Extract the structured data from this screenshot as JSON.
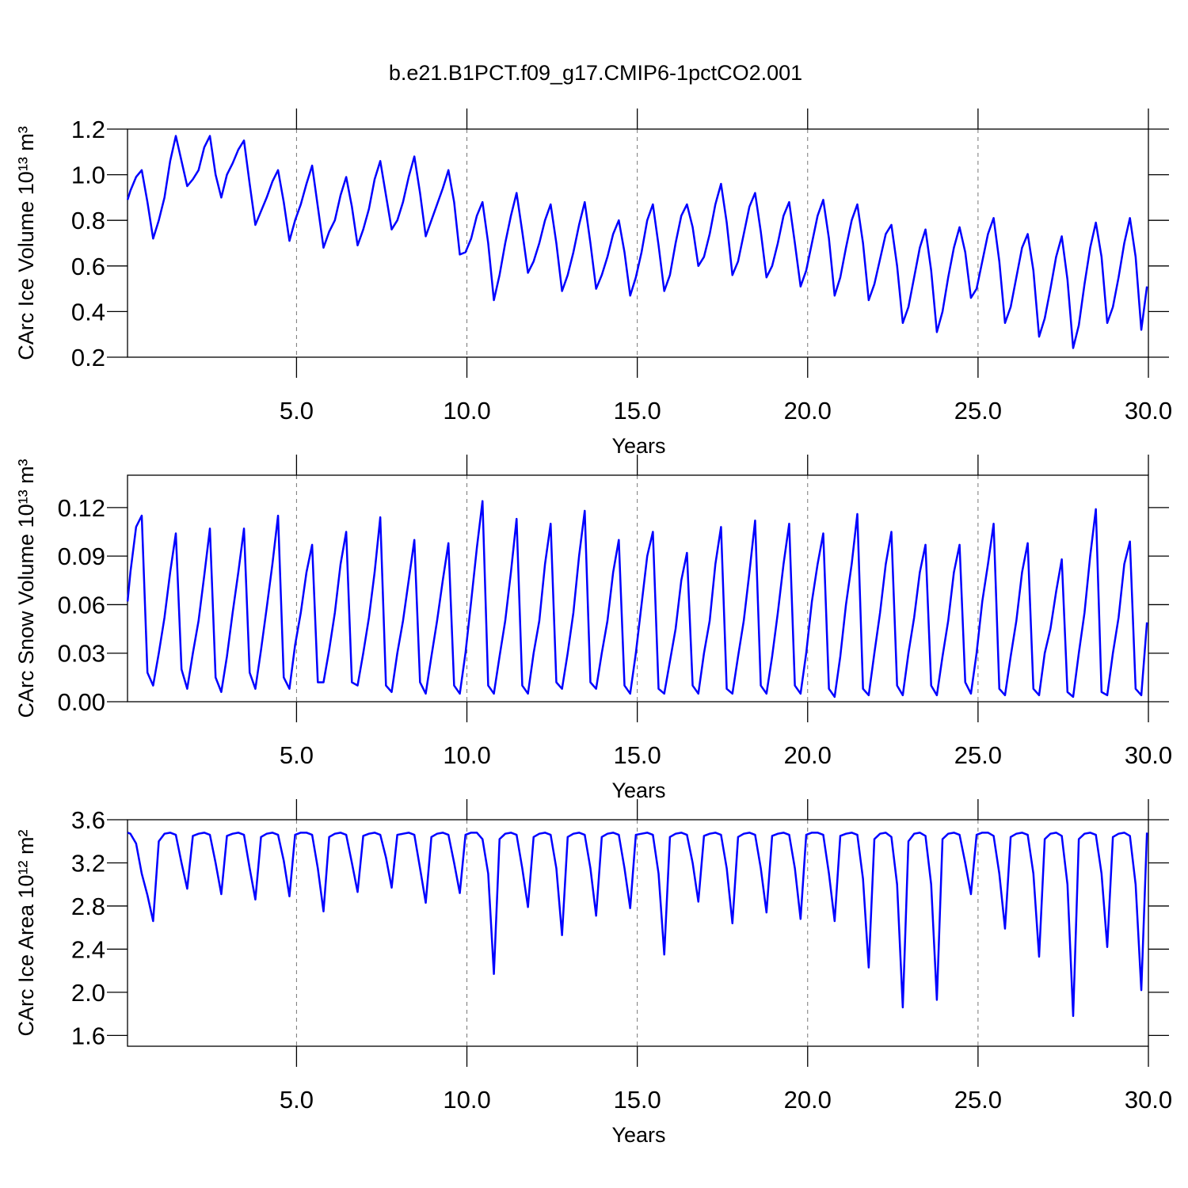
{
  "chart_data": [
    {
      "type": "line",
      "title": "b.e21.B1PCT.f09_g17.CMIP6-1pctCO2.001",
      "ylabel": "CArc Ice Volume 10¹³ m³",
      "xlabel": "Years",
      "color": "#0000ff",
      "xgrid": true,
      "xlim": [
        0.04,
        30
      ],
      "xticks": [
        {
          "value": 5,
          "label": "5.0"
        },
        {
          "value": 10,
          "label": "10.0"
        },
        {
          "value": 15,
          "label": "15.0"
        },
        {
          "value": 20,
          "label": "20.0"
        },
        {
          "value": 25,
          "label": "25.0"
        },
        {
          "value": 30,
          "label": "30.0"
        }
      ],
      "ylim": [
        0.2,
        1.2
      ],
      "yticks": [
        0.2,
        0.4,
        0.6,
        0.8,
        {
          "value": 1,
          "label": "1.0"
        },
        1.2
      ],
      "x": [
        0.042,
        0.125,
        0.292,
        0.458,
        0.625,
        0.792,
        0.958,
        1.125,
        1.292,
        1.458,
        1.625,
        1.792,
        1.958,
        2.125,
        2.292,
        2.458,
        2.625,
        2.792,
        2.958,
        3.125,
        3.292,
        3.458,
        3.625,
        3.792,
        3.958,
        4.125,
        4.292,
        4.458,
        4.625,
        4.792,
        4.958,
        5.125,
        5.292,
        5.458,
        5.625,
        5.792,
        5.958,
        6.125,
        6.292,
        6.458,
        6.625,
        6.792,
        6.958,
        7.125,
        7.292,
        7.458,
        7.625,
        7.792,
        7.958,
        8.125,
        8.292,
        8.458,
        8.625,
        8.792,
        8.958,
        9.125,
        9.292,
        9.458,
        9.625,
        9.792,
        9.958,
        10.125,
        10.292,
        10.458,
        10.625,
        10.792,
        10.958,
        11.125,
        11.292,
        11.458,
        11.625,
        11.792,
        11.958,
        12.125,
        12.292,
        12.458,
        12.625,
        12.792,
        12.958,
        13.125,
        13.292,
        13.458,
        13.625,
        13.792,
        13.958,
        14.125,
        14.292,
        14.458,
        14.625,
        14.792,
        14.958,
        15.125,
        15.292,
        15.458,
        15.625,
        15.792,
        15.958,
        16.125,
        16.292,
        16.458,
        16.625,
        16.792,
        16.958,
        17.125,
        17.292,
        17.458,
        17.625,
        17.792,
        17.958,
        18.125,
        18.292,
        18.458,
        18.625,
        18.792,
        18.958,
        19.125,
        19.292,
        19.458,
        19.625,
        19.792,
        19.958,
        20.125,
        20.292,
        20.458,
        20.625,
        20.792,
        20.958,
        21.125,
        21.292,
        21.458,
        21.625,
        21.792,
        21.958,
        22.125,
        22.292,
        22.458,
        22.625,
        22.792,
        22.958,
        23.125,
        23.292,
        23.458,
        23.625,
        23.792,
        23.958,
        24.125,
        24.292,
        24.458,
        24.625,
        24.792,
        24.958,
        25.125,
        25.292,
        25.458,
        25.625,
        25.792,
        25.958,
        26.125,
        26.292,
        26.458,
        26.625,
        26.792,
        26.958,
        27.125,
        27.292,
        27.458,
        27.625,
        27.792,
        27.958,
        28.125,
        28.292,
        28.458,
        28.625,
        28.792,
        28.958,
        29.125,
        29.292,
        29.458,
        29.625,
        29.792,
        29.958
      ],
      "values": [
        0.89,
        0.93,
        0.99,
        1.02,
        0.88,
        0.72,
        0.8,
        0.9,
        1.06,
        1.17,
        1.06,
        0.95,
        0.98,
        1.02,
        1.12,
        1.17,
        1.0,
        0.9,
        1.0,
        1.05,
        1.11,
        1.15,
        0.96,
        0.78,
        0.84,
        0.9,
        0.97,
        1.02,
        0.88,
        0.71,
        0.8,
        0.87,
        0.96,
        1.04,
        0.86,
        0.68,
        0.75,
        0.8,
        0.91,
        0.99,
        0.86,
        0.69,
        0.76,
        0.85,
        0.98,
        1.06,
        0.91,
        0.76,
        0.8,
        0.88,
        0.99,
        1.08,
        0.92,
        0.73,
        0.8,
        0.87,
        0.94,
        1.02,
        0.88,
        0.65,
        0.66,
        0.72,
        0.82,
        0.88,
        0.7,
        0.45,
        0.56,
        0.7,
        0.82,
        0.92,
        0.75,
        0.57,
        0.62,
        0.7,
        0.8,
        0.87,
        0.7,
        0.49,
        0.56,
        0.66,
        0.78,
        0.88,
        0.7,
        0.5,
        0.56,
        0.64,
        0.74,
        0.8,
        0.66,
        0.47,
        0.55,
        0.66,
        0.8,
        0.87,
        0.69,
        0.49,
        0.56,
        0.7,
        0.82,
        0.87,
        0.77,
        0.6,
        0.64,
        0.74,
        0.87,
        0.96,
        0.79,
        0.56,
        0.62,
        0.74,
        0.86,
        0.92,
        0.75,
        0.55,
        0.6,
        0.7,
        0.82,
        0.88,
        0.7,
        0.51,
        0.58,
        0.7,
        0.82,
        0.89,
        0.72,
        0.47,
        0.55,
        0.68,
        0.8,
        0.87,
        0.7,
        0.45,
        0.52,
        0.63,
        0.74,
        0.78,
        0.6,
        0.35,
        0.42,
        0.55,
        0.68,
        0.76,
        0.58,
        0.31,
        0.4,
        0.55,
        0.68,
        0.77,
        0.66,
        0.46,
        0.5,
        0.62,
        0.74,
        0.81,
        0.62,
        0.35,
        0.42,
        0.55,
        0.68,
        0.74,
        0.58,
        0.29,
        0.37,
        0.5,
        0.64,
        0.73,
        0.54,
        0.24,
        0.34,
        0.52,
        0.68,
        0.79,
        0.64,
        0.35,
        0.42,
        0.55,
        0.7,
        0.81,
        0.64,
        0.32,
        0.51
      ]
    },
    {
      "type": "line",
      "ylabel": "CArc Snow Volume 10¹³ m³",
      "xlabel": "Years",
      "color": "#0000ff",
      "xgrid": true,
      "xlim": [
        0.04,
        30
      ],
      "xticks": [
        {
          "value": 5,
          "label": "5.0"
        },
        {
          "value": 10,
          "label": "10.0"
        },
        {
          "value": 15,
          "label": "15.0"
        },
        {
          "value": 20,
          "label": "20.0"
        },
        {
          "value": 25,
          "label": "25.0"
        },
        {
          "value": 30,
          "label": "30.0"
        }
      ],
      "ylim": [
        0,
        0.14
      ],
      "yticks": [
        {
          "value": 0,
          "label": "0.00"
        },
        {
          "value": 0.03,
          "label": "0.03"
        },
        {
          "value": 0.06,
          "label": "0.06"
        },
        {
          "value": 0.09,
          "label": "0.09"
        },
        {
          "value": 0.12,
          "label": "0.12"
        }
      ],
      "x": [
        0.042,
        0.125,
        0.292,
        0.458,
        0.625,
        0.792,
        0.958,
        1.125,
        1.292,
        1.458,
        1.625,
        1.792,
        1.958,
        2.125,
        2.292,
        2.458,
        2.625,
        2.792,
        2.958,
        3.125,
        3.292,
        3.458,
        3.625,
        3.792,
        3.958,
        4.125,
        4.292,
        4.458,
        4.625,
        4.792,
        4.958,
        5.125,
        5.292,
        5.458,
        5.625,
        5.792,
        5.958,
        6.125,
        6.292,
        6.458,
        6.625,
        6.792,
        6.958,
        7.125,
        7.292,
        7.458,
        7.625,
        7.792,
        7.958,
        8.125,
        8.292,
        8.458,
        8.625,
        8.792,
        8.958,
        9.125,
        9.292,
        9.458,
        9.625,
        9.792,
        9.958,
        10.125,
        10.292,
        10.458,
        10.625,
        10.792,
        10.958,
        11.125,
        11.292,
        11.458,
        11.625,
        11.792,
        11.958,
        12.125,
        12.292,
        12.458,
        12.625,
        12.792,
        12.958,
        13.125,
        13.292,
        13.458,
        13.625,
        13.792,
        13.958,
        14.125,
        14.292,
        14.458,
        14.625,
        14.792,
        14.958,
        15.125,
        15.292,
        15.458,
        15.625,
        15.792,
        15.958,
        16.125,
        16.292,
        16.458,
        16.625,
        16.792,
        16.958,
        17.125,
        17.292,
        17.458,
        17.625,
        17.792,
        17.958,
        18.125,
        18.292,
        18.458,
        18.625,
        18.792,
        18.958,
        19.125,
        19.292,
        19.458,
        19.625,
        19.792,
        19.958,
        20.125,
        20.292,
        20.458,
        20.625,
        20.792,
        20.958,
        21.125,
        21.292,
        21.458,
        21.625,
        21.792,
        21.958,
        22.125,
        22.292,
        22.458,
        22.625,
        22.792,
        22.958,
        23.125,
        23.292,
        23.458,
        23.625,
        23.792,
        23.958,
        24.125,
        24.292,
        24.458,
        24.625,
        24.792,
        24.958,
        25.125,
        25.292,
        25.458,
        25.625,
        25.792,
        25.958,
        26.125,
        26.292,
        26.458,
        26.625,
        26.792,
        26.958,
        27.125,
        27.292,
        27.458,
        27.625,
        27.792,
        27.958,
        28.125,
        28.292,
        28.458,
        28.625,
        28.792,
        28.958,
        29.125,
        29.292,
        29.458,
        29.625,
        29.792,
        29.958
      ],
      "values": [
        0.062,
        0.08,
        0.108,
        0.115,
        0.018,
        0.01,
        0.03,
        0.052,
        0.08,
        0.104,
        0.02,
        0.008,
        0.03,
        0.05,
        0.078,
        0.107,
        0.015,
        0.006,
        0.028,
        0.055,
        0.08,
        0.107,
        0.018,
        0.008,
        0.032,
        0.058,
        0.085,
        0.115,
        0.015,
        0.008,
        0.035,
        0.055,
        0.08,
        0.097,
        0.012,
        0.012,
        0.032,
        0.055,
        0.085,
        0.105,
        0.012,
        0.01,
        0.03,
        0.052,
        0.08,
        0.114,
        0.01,
        0.006,
        0.03,
        0.05,
        0.075,
        0.1,
        0.012,
        0.005,
        0.028,
        0.05,
        0.075,
        0.098,
        0.01,
        0.005,
        0.03,
        0.062,
        0.095,
        0.124,
        0.01,
        0.005,
        0.028,
        0.05,
        0.08,
        0.113,
        0.01,
        0.005,
        0.03,
        0.05,
        0.085,
        0.11,
        0.012,
        0.008,
        0.03,
        0.055,
        0.09,
        0.118,
        0.012,
        0.008,
        0.03,
        0.05,
        0.08,
        0.1,
        0.01,
        0.005,
        0.03,
        0.06,
        0.09,
        0.105,
        0.008,
        0.005,
        0.025,
        0.045,
        0.075,
        0.092,
        0.01,
        0.005,
        0.03,
        0.05,
        0.085,
        0.108,
        0.008,
        0.005,
        0.028,
        0.05,
        0.08,
        0.112,
        0.01,
        0.005,
        0.028,
        0.055,
        0.085,
        0.11,
        0.01,
        0.005,
        0.03,
        0.062,
        0.085,
        0.104,
        0.008,
        0.003,
        0.028,
        0.06,
        0.085,
        0.116,
        0.008,
        0.004,
        0.03,
        0.055,
        0.085,
        0.105,
        0.01,
        0.004,
        0.03,
        0.052,
        0.08,
        0.097,
        0.01,
        0.004,
        0.028,
        0.05,
        0.08,
        0.097,
        0.012,
        0.005,
        0.03,
        0.062,
        0.085,
        0.11,
        0.008,
        0.004,
        0.028,
        0.05,
        0.08,
        0.098,
        0.008,
        0.004,
        0.03,
        0.045,
        0.068,
        0.088,
        0.006,
        0.003,
        0.03,
        0.055,
        0.09,
        0.119,
        0.006,
        0.004,
        0.03,
        0.052,
        0.085,
        0.099,
        0.008,
        0.004,
        0.049
      ]
    },
    {
      "type": "line",
      "ylabel": "CArc Ice Area 10¹² m²",
      "xlabel": "Years",
      "color": "#0000ff",
      "xgrid": true,
      "xlim": [
        0.04,
        30
      ],
      "xticks": [
        {
          "value": 5,
          "label": "5.0"
        },
        {
          "value": 10,
          "label": "10.0"
        },
        {
          "value": 15,
          "label": "15.0"
        },
        {
          "value": 20,
          "label": "20.0"
        },
        {
          "value": 25,
          "label": "25.0"
        },
        {
          "value": 30,
          "label": "30.0"
        }
      ],
      "ylim": [
        1.5,
        3.6
      ],
      "yticks": [
        1.6,
        {
          "value": 2,
          "label": "2.0"
        },
        2.4,
        2.8,
        3.2,
        3.6
      ],
      "x": [
        0.042,
        0.125,
        0.292,
        0.458,
        0.625,
        0.792,
        0.958,
        1.125,
        1.292,
        1.458,
        1.625,
        1.792,
        1.958,
        2.125,
        2.292,
        2.458,
        2.625,
        2.792,
        2.958,
        3.125,
        3.292,
        3.458,
        3.625,
        3.792,
        3.958,
        4.125,
        4.292,
        4.458,
        4.625,
        4.792,
        4.958,
        5.125,
        5.292,
        5.458,
        5.625,
        5.792,
        5.958,
        6.125,
        6.292,
        6.458,
        6.625,
        6.792,
        6.958,
        7.125,
        7.292,
        7.458,
        7.625,
        7.792,
        7.958,
        8.125,
        8.292,
        8.458,
        8.625,
        8.792,
        8.958,
        9.125,
        9.292,
        9.458,
        9.625,
        9.792,
        9.958,
        10.125,
        10.292,
        10.458,
        10.625,
        10.792,
        10.958,
        11.125,
        11.292,
        11.458,
        11.625,
        11.792,
        11.958,
        12.125,
        12.292,
        12.458,
        12.625,
        12.792,
        12.958,
        13.125,
        13.292,
        13.458,
        13.625,
        13.792,
        13.958,
        14.125,
        14.292,
        14.458,
        14.625,
        14.792,
        14.958,
        15.125,
        15.292,
        15.458,
        15.625,
        15.792,
        15.958,
        16.125,
        16.292,
        16.458,
        16.625,
        16.792,
        16.958,
        17.125,
        17.292,
        17.458,
        17.625,
        17.792,
        17.958,
        18.125,
        18.292,
        18.458,
        18.625,
        18.792,
        18.958,
        19.125,
        19.292,
        19.458,
        19.625,
        19.792,
        19.958,
        20.125,
        20.292,
        20.458,
        20.625,
        20.792,
        20.958,
        21.125,
        21.292,
        21.458,
        21.625,
        21.792,
        21.958,
        22.125,
        22.292,
        22.458,
        22.625,
        22.792,
        22.958,
        23.125,
        23.292,
        23.458,
        23.625,
        23.792,
        23.958,
        24.125,
        24.292,
        24.458,
        24.625,
        24.792,
        24.958,
        25.125,
        25.292,
        25.458,
        25.625,
        25.792,
        25.958,
        26.125,
        26.292,
        26.458,
        26.625,
        26.792,
        26.958,
        27.125,
        27.292,
        27.458,
        27.625,
        27.792,
        27.958,
        28.125,
        28.292,
        28.458,
        28.625,
        28.792,
        28.958,
        29.125,
        29.292,
        29.458,
        29.625,
        29.792,
        29.958
      ],
      "values": [
        3.48,
        3.47,
        3.38,
        3.1,
        2.9,
        2.66,
        3.4,
        3.47,
        3.48,
        3.46,
        3.2,
        2.96,
        3.45,
        3.47,
        3.48,
        3.46,
        3.2,
        2.91,
        3.45,
        3.47,
        3.48,
        3.46,
        3.15,
        2.86,
        3.44,
        3.47,
        3.48,
        3.46,
        3.22,
        2.89,
        3.46,
        3.48,
        3.48,
        3.46,
        3.15,
        2.75,
        3.44,
        3.47,
        3.48,
        3.46,
        3.2,
        2.93,
        3.45,
        3.47,
        3.48,
        3.46,
        3.25,
        2.97,
        3.46,
        3.47,
        3.48,
        3.46,
        3.15,
        2.83,
        3.44,
        3.47,
        3.48,
        3.46,
        3.2,
        2.92,
        3.46,
        3.48,
        3.48,
        3.42,
        3.1,
        2.17,
        3.42,
        3.47,
        3.48,
        3.46,
        3.15,
        2.79,
        3.44,
        3.47,
        3.48,
        3.46,
        3.15,
        2.53,
        3.44,
        3.47,
        3.48,
        3.46,
        3.15,
        2.71,
        3.44,
        3.47,
        3.48,
        3.46,
        3.15,
        2.78,
        3.46,
        3.47,
        3.48,
        3.46,
        3.1,
        2.35,
        3.44,
        3.47,
        3.48,
        3.46,
        3.2,
        2.84,
        3.45,
        3.47,
        3.48,
        3.46,
        3.15,
        2.64,
        3.44,
        3.47,
        3.48,
        3.46,
        3.15,
        2.74,
        3.45,
        3.47,
        3.48,
        3.46,
        3.15,
        2.68,
        3.46,
        3.48,
        3.48,
        3.46,
        3.1,
        2.66,
        3.45,
        3.47,
        3.48,
        3.46,
        3.05,
        2.23,
        3.42,
        3.47,
        3.48,
        3.44,
        3.0,
        1.86,
        3.4,
        3.47,
        3.48,
        3.45,
        3.0,
        1.93,
        3.42,
        3.47,
        3.48,
        3.46,
        3.2,
        2.91,
        3.46,
        3.48,
        3.48,
        3.45,
        3.1,
        2.59,
        3.44,
        3.47,
        3.48,
        3.46,
        3.1,
        2.33,
        3.42,
        3.47,
        3.48,
        3.45,
        3.0,
        1.78,
        3.42,
        3.47,
        3.48,
        3.46,
        3.1,
        2.42,
        3.44,
        3.47,
        3.48,
        3.45,
        3.0,
        2.02,
        3.48
      ]
    }
  ]
}
